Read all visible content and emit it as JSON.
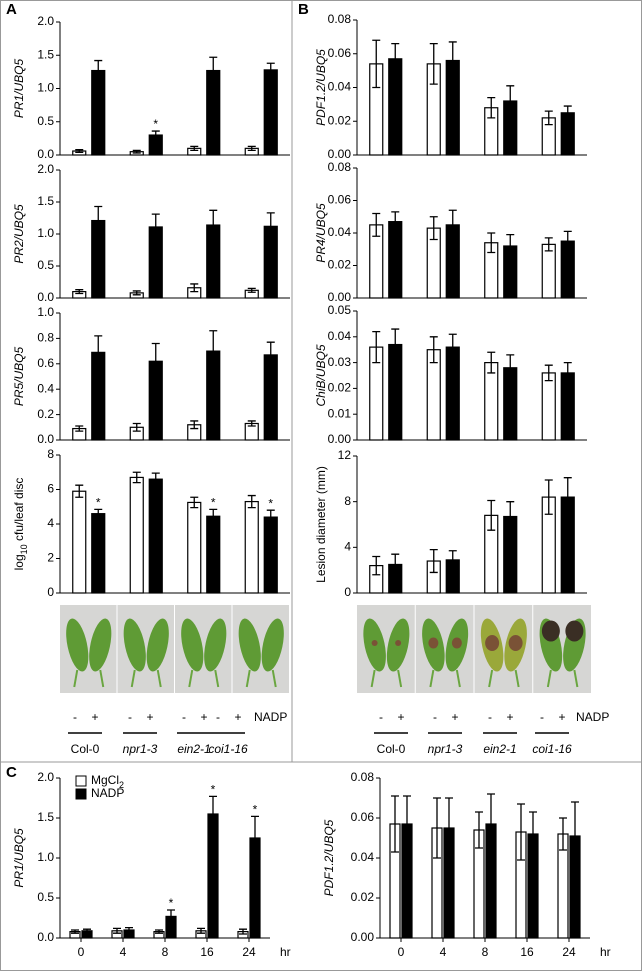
{
  "panel_labels": [
    "A",
    "B",
    "C"
  ],
  "treatments": [
    "-",
    "+"
  ],
  "treatment_name": "NADP",
  "chart_data": [
    {
      "type": "bar",
      "ylabel": "PR1/UBQ5",
      "categories": [
        "Col-0",
        "npr1-3",
        "ein2-1",
        "coi1-16"
      ],
      "series": [
        {
          "name": "MgCl2",
          "color": "#ffffff",
          "values": [
            0.06,
            0.05,
            0.1,
            0.1
          ],
          "errors": [
            0.02,
            0.02,
            0.03,
            0.03
          ]
        },
        {
          "name": "NADP",
          "color": "#000000",
          "values": [
            1.27,
            0.3,
            1.27,
            1.28
          ],
          "errors": [
            0.15,
            0.06,
            0.2,
            0.1
          ],
          "significance": [
            null,
            "*",
            null,
            null
          ]
        }
      ],
      "ylim": [
        0,
        2.0
      ],
      "yticks": [
        {
          "value": 0,
          "label": "0.0"
        },
        0.5,
        {
          "value": 1,
          "label": "1.0"
        },
        1.5,
        {
          "value": 2,
          "label": "2.0"
        }
      ]
    },
    {
      "type": "bar",
      "ylabel": "PR2/UBQ5",
      "categories": [
        "Col-0",
        "npr1-3",
        "ein2-1",
        "coi1-16"
      ],
      "series": [
        {
          "name": "MgCl2",
          "color": "#ffffff",
          "values": [
            0.1,
            0.08,
            0.16,
            0.12
          ],
          "errors": [
            0.03,
            0.03,
            0.06,
            0.03
          ]
        },
        {
          "name": "NADP",
          "color": "#000000",
          "values": [
            1.21,
            1.11,
            1.14,
            1.12
          ],
          "errors": [
            0.22,
            0.2,
            0.23,
            0.21
          ]
        }
      ],
      "ylim": [
        0,
        2.0
      ],
      "yticks": [
        {
          "value": 0,
          "label": "0.0"
        },
        0.5,
        {
          "value": 1,
          "label": "1.0"
        },
        1.5,
        {
          "value": 2,
          "label": "2.0"
        }
      ]
    },
    {
      "type": "bar",
      "ylabel": "PR5/UBQ5",
      "categories": [
        "Col-0",
        "npr1-3",
        "ein2-1",
        "coi1-16"
      ],
      "series": [
        {
          "name": "MgCl2",
          "color": "#ffffff",
          "values": [
            0.09,
            0.1,
            0.12,
            0.13
          ],
          "errors": [
            0.02,
            0.03,
            0.03,
            0.02
          ]
        },
        {
          "name": "NADP",
          "color": "#000000",
          "values": [
            0.69,
            0.62,
            0.7,
            0.67
          ],
          "errors": [
            0.13,
            0.14,
            0.16,
            0.1
          ]
        }
      ],
      "ylim": [
        0,
        1.0
      ],
      "yticks": [
        {
          "value": 0,
          "label": "0.0"
        },
        0.2,
        0.4,
        0.6,
        0.8,
        {
          "value": 1,
          "label": "1.0"
        }
      ]
    },
    {
      "type": "bar",
      "ylabel": [
        "log",
        "10",
        " cfu/leaf disc"
      ],
      "categories": [
        "Col-0",
        "npr1-3",
        "ein2-1",
        "coi1-16"
      ],
      "series": [
        {
          "name": "MgCl2",
          "color": "#ffffff",
          "values": [
            5.9,
            6.7,
            5.25,
            5.3
          ],
          "errors": [
            0.35,
            0.3,
            0.3,
            0.35
          ]
        },
        {
          "name": "NADP",
          "color": "#000000",
          "values": [
            4.6,
            6.6,
            4.45,
            4.4
          ],
          "errors": [
            0.25,
            0.35,
            0.4,
            0.4
          ],
          "significance": [
            "*",
            null,
            "*",
            "*"
          ]
        }
      ],
      "ylim": [
        0,
        8
      ],
      "yticks": [
        0,
        2,
        4,
        6,
        8
      ]
    },
    {
      "type": "bar",
      "ylabel": "PDF1.2/UBQ5",
      "categories": [
        "Col-0",
        "npr1-3",
        "ein2-1",
        "coi1-16"
      ],
      "series": [
        {
          "name": "MgCl2",
          "color": "#ffffff",
          "values": [
            0.054,
            0.054,
            0.028,
            0.022
          ],
          "errors": [
            0.014,
            0.012,
            0.006,
            0.004
          ]
        },
        {
          "name": "NADP",
          "color": "#000000",
          "values": [
            0.057,
            0.056,
            0.032,
            0.025
          ],
          "errors": [
            0.009,
            0.011,
            0.009,
            0.004
          ]
        }
      ],
      "ylim": [
        0,
        0.08
      ],
      "yticks": [
        {
          "value": 0,
          "label": "0.00"
        },
        0.02,
        0.04,
        0.06,
        0.08
      ]
    },
    {
      "type": "bar",
      "ylabel": "PR4/UBQ5",
      "categories": [
        "Col-0",
        "npr1-3",
        "ein2-1",
        "coi1-16"
      ],
      "series": [
        {
          "name": "MgCl2",
          "color": "#ffffff",
          "values": [
            0.045,
            0.043,
            0.034,
            0.033
          ],
          "errors": [
            0.007,
            0.007,
            0.006,
            0.004
          ]
        },
        {
          "name": "NADP",
          "color": "#000000",
          "values": [
            0.047,
            0.045,
            0.032,
            0.035
          ],
          "errors": [
            0.006,
            0.009,
            0.007,
            0.006
          ]
        }
      ],
      "ylim": [
        0,
        0.08
      ],
      "yticks": [
        {
          "value": 0,
          "label": "0.00"
        },
        0.02,
        0.04,
        0.06,
        0.08
      ]
    },
    {
      "type": "bar",
      "ylabel": "ChiB/UBQ5",
      "categories": [
        "Col-0",
        "npr1-3",
        "ein2-1",
        "coi1-16"
      ],
      "series": [
        {
          "name": "MgCl2",
          "color": "#ffffff",
          "values": [
            0.036,
            0.035,
            0.03,
            0.026
          ],
          "errors": [
            0.006,
            0.005,
            0.004,
            0.003
          ]
        },
        {
          "name": "NADP",
          "color": "#000000",
          "values": [
            0.037,
            0.036,
            0.028,
            0.026
          ],
          "errors": [
            0.006,
            0.005,
            0.005,
            0.004
          ]
        }
      ],
      "ylim": [
        0,
        0.05
      ],
      "yticks": [
        {
          "value": 0,
          "label": "0.00"
        },
        0.01,
        0.02,
        0.03,
        0.04,
        0.05
      ]
    },
    {
      "type": "bar",
      "ylabel": "Lesion diameter (mm)",
      "categories": [
        "Col-0",
        "npr1-3",
        "ein2-1",
        "coi1-16"
      ],
      "series": [
        {
          "name": "MgCl2",
          "color": "#ffffff",
          "values": [
            2.4,
            2.8,
            6.8,
            8.4
          ],
          "errors": [
            0.8,
            1.0,
            1.3,
            1.5
          ]
        },
        {
          "name": "NADP",
          "color": "#000000",
          "values": [
            2.5,
            2.9,
            6.7,
            8.4
          ],
          "errors": [
            0.9,
            0.8,
            1.3,
            1.7
          ]
        }
      ],
      "ylim": [
        0,
        12
      ],
      "yticks": [
        0,
        4,
        8,
        12
      ]
    },
    {
      "type": "bar",
      "ylabel": "PR1/UBQ5",
      "xlabel": "hr",
      "categories": [
        "0",
        "4",
        "8",
        "16",
        "24"
      ],
      "legend": true,
      "series": [
        {
          "name": [
            "MgCl",
            "2"
          ],
          "color": "#ffffff",
          "values": [
            0.08,
            0.09,
            0.08,
            0.09,
            0.08
          ],
          "errors": [
            0.02,
            0.03,
            0.02,
            0.03,
            0.03
          ]
        },
        {
          "name": "NADP",
          "color": "#000000",
          "values": [
            0.09,
            0.1,
            0.27,
            1.55,
            1.25
          ],
          "errors": [
            0.02,
            0.03,
            0.08,
            0.22,
            0.27
          ],
          "significance": [
            null,
            null,
            "*",
            "*",
            "*"
          ]
        }
      ],
      "ylim": [
        0,
        2.0
      ],
      "yticks": [
        {
          "value": 0,
          "label": "0.0"
        },
        0.5,
        {
          "value": 1,
          "label": "1.0"
        },
        1.5,
        {
          "value": 2,
          "label": "2.0"
        }
      ]
    },
    {
      "type": "bar",
      "ylabel": "PDF1.2/UBQ5",
      "xlabel": "hr",
      "categories": [
        "0",
        "4",
        "8",
        "16",
        "24"
      ],
      "series": [
        {
          "name": "MgCl2",
          "color": "#ffffff",
          "values": [
            0.057,
            0.055,
            0.054,
            0.053,
            0.052
          ],
          "errors": [
            0.014,
            0.015,
            0.009,
            0.014,
            0.008
          ]
        },
        {
          "name": "NADP",
          "color": "#000000",
          "values": [
            0.057,
            0.055,
            0.057,
            0.052,
            0.051
          ],
          "errors": [
            0.014,
            0.015,
            0.015,
            0.011,
            0.017
          ]
        }
      ],
      "ylim": [
        0,
        0.08
      ],
      "yticks": [
        {
          "value": 0,
          "label": "0.00"
        },
        0.02,
        0.04,
        0.06,
        0.08
      ]
    }
  ]
}
